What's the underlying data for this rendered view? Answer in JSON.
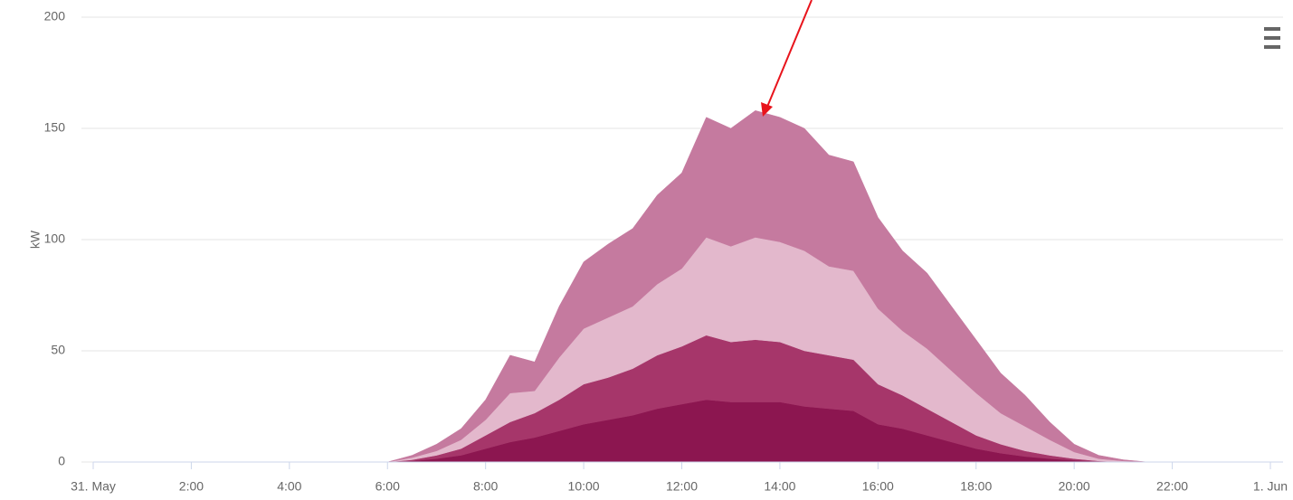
{
  "chart_data": {
    "type": "stacked-area",
    "y_label": "kW",
    "x": [
      0,
      6,
      6.5,
      7,
      7.5,
      8,
      8.5,
      9,
      9.5,
      10,
      10.5,
      11,
      11.5,
      12,
      12.5,
      13,
      13.5,
      14,
      14.5,
      15,
      15.5,
      16,
      16.5,
      17,
      17.5,
      18,
      18.5,
      19,
      19.5,
      20,
      20.5,
      21,
      21.5,
      24
    ],
    "xlim": [
      0,
      24
    ],
    "xticks": [
      {
        "value": 0,
        "label": "31. May"
      },
      {
        "value": 2,
        "label": "2:00"
      },
      {
        "value": 4,
        "label": "4:00"
      },
      {
        "value": 6,
        "label": "6:00"
      },
      {
        "value": 8,
        "label": "8:00"
      },
      {
        "value": 10,
        "label": "10:00"
      },
      {
        "value": 12,
        "label": "12:00"
      },
      {
        "value": 14,
        "label": "14:00"
      },
      {
        "value": 16,
        "label": "16:00"
      },
      {
        "value": 18,
        "label": "18:00"
      },
      {
        "value": 20,
        "label": "20:00"
      },
      {
        "value": 22,
        "label": "22:00"
      },
      {
        "value": 24,
        "label": "1. Jun"
      }
    ],
    "ylim": [
      0,
      200
    ],
    "yticks": [
      0,
      50,
      100,
      150,
      200
    ],
    "grid": true,
    "series": [
      {
        "color": "#8c1650",
        "values": [
          0,
          0,
          0.5,
          1.5,
          3,
          6,
          9,
          11,
          14,
          17,
          19,
          21,
          24,
          26,
          28,
          27,
          27,
          27,
          25,
          24,
          23,
          17,
          15,
          12,
          9,
          6,
          4,
          2.5,
          1.5,
          0.8,
          0.3,
          0,
          0,
          0
        ]
      },
      {
        "color": "#a6366a",
        "values": [
          0,
          0,
          0.5,
          1.5,
          3,
          6,
          9,
          11,
          14,
          18,
          19,
          21,
          24,
          26,
          29,
          27,
          28,
          27,
          25,
          24,
          23,
          18,
          15,
          12,
          9,
          6,
          4,
          2.5,
          1.5,
          0.7,
          0.2,
          0,
          0,
          0
        ]
      },
      {
        "color": "#e3b8cc",
        "values": [
          0,
          0,
          1,
          2,
          4,
          7,
          13,
          10,
          19,
          25,
          27,
          28,
          32,
          35,
          44,
          43,
          46,
          45,
          45,
          40,
          40,
          34,
          29,
          27,
          23,
          19,
          14,
          11,
          7,
          3,
          1,
          0.5,
          0,
          0
        ]
      },
      {
        "color": "#c57a9f",
        "values": [
          0,
          0,
          1,
          3,
          5,
          9,
          17,
          13,
          23,
          30,
          33,
          35,
          40,
          43,
          54,
          53,
          57,
          56,
          55,
          50,
          49,
          41,
          36,
          34,
          29,
          24,
          18,
          14,
          8,
          3.5,
          1.5,
          0.5,
          0,
          0
        ]
      }
    ]
  }
}
